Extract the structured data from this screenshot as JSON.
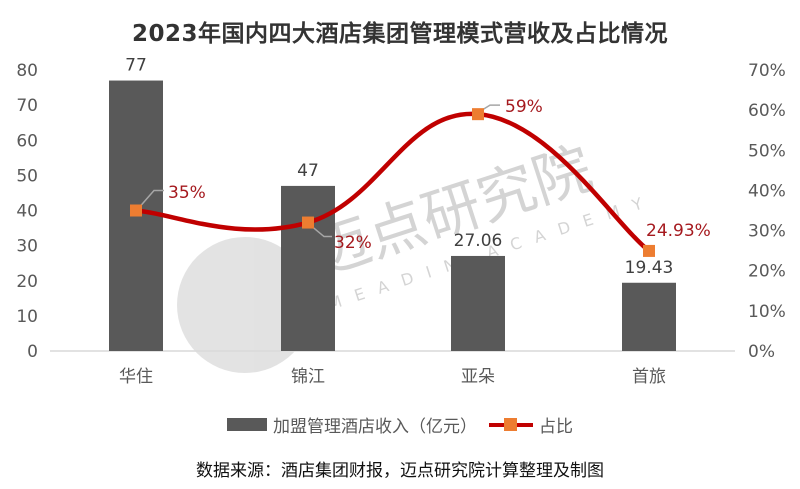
{
  "chart_data": {
    "type": "bar+line",
    "title": "2023年国内四大酒店集团管理模式营收及占比情况",
    "categories": [
      "华住",
      "锦江",
      "亚朵",
      "首旅"
    ],
    "series": [
      {
        "name": "加盟管理酒店收入（亿元）",
        "type": "bar",
        "axis": "left",
        "color": "#595959",
        "values": [
          77,
          47,
          27.06,
          19.43
        ],
        "labels": [
          "77",
          "47",
          "27.06",
          "19.43"
        ]
      },
      {
        "name": "占比",
        "type": "line",
        "axis": "right",
        "color": "#c00000",
        "marker_color": "#ed7d31",
        "values": [
          35,
          32,
          59,
          24.93
        ],
        "labels": [
          "35%",
          "32%",
          "59%",
          "24.93%"
        ]
      }
    ],
    "y_left": {
      "min": 0,
      "max": 80,
      "ticks": [
        "0",
        "10",
        "20",
        "30",
        "40",
        "50",
        "60",
        "70",
        "80"
      ]
    },
    "y_right": {
      "min": 0,
      "max": 70,
      "ticks": [
        "0%",
        "10%",
        "20%",
        "30%",
        "40%",
        "50%",
        "60%",
        "70%"
      ]
    },
    "xlabel": "",
    "ylabel": "",
    "grid": false,
    "legend_position": "bottom"
  },
  "legend": {
    "bar_label": "加盟管理酒店收入（亿元）",
    "line_label": "占比"
  },
  "watermark": {
    "cn": "迈点研究院",
    "en": "MEADIN ACADEMY"
  },
  "source": "数据来源：酒店集团财报，迈点研究院计算整理及制图"
}
